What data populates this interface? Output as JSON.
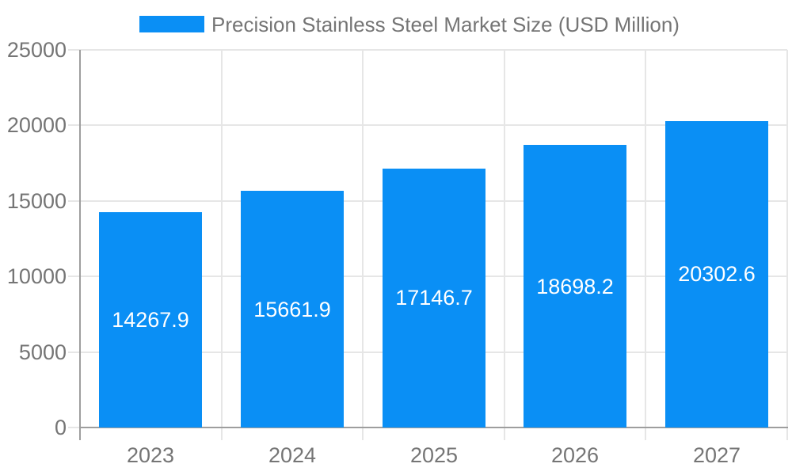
{
  "chart_data": {
    "type": "bar",
    "title": "Precision Stainless Steel Market Size (USD Million)",
    "categories": [
      "2023",
      "2024",
      "2025",
      "2026",
      "2027"
    ],
    "series": [
      {
        "name": "Precision Stainless Steel Market Size (USD Million)",
        "values": [
          14267.9,
          15661.9,
          17146.7,
          18698.2,
          20302.6
        ]
      }
    ],
    "value_labels": [
      "14267.9",
      "15661.9",
      "17146.7",
      "18698.2",
      "20302.6"
    ],
    "xlabel": "",
    "ylabel": "",
    "ylim": [
      0,
      25000
    ],
    "y_ticks": [
      0,
      5000,
      10000,
      15000,
      20000,
      25000
    ],
    "grid": true,
    "legend_position": "top",
    "colors": {
      "bar": "#0a8ff5",
      "bar_label": "#ffffff",
      "axis_text": "#757575",
      "axis_line": "#9e9e9e",
      "gridline": "#e6e6e6",
      "legend_text": "#757575",
      "background": "#ffffff"
    }
  }
}
